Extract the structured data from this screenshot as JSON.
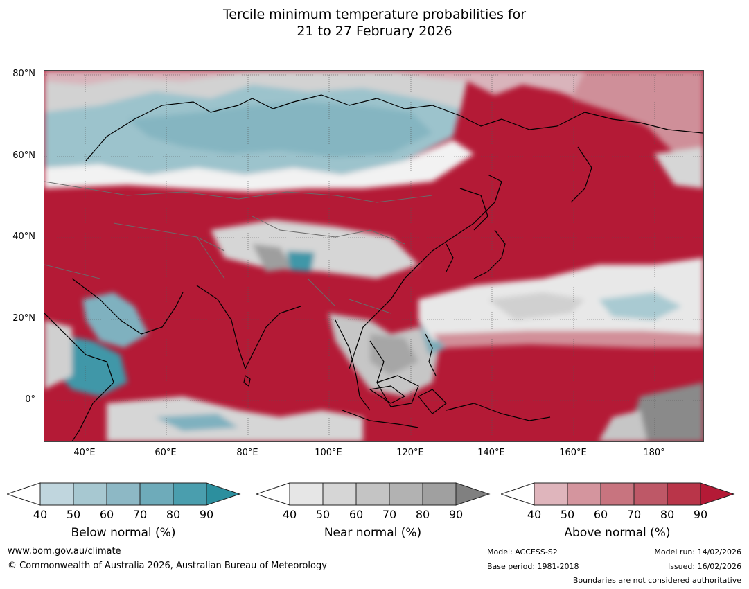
{
  "title_line1": "Tercile minimum temperature probabilities for",
  "title_line2": "21 to 27 February 2026",
  "lat_ticks": [
    "80°N",
    "60°N",
    "40°N",
    "20°N",
    "0°"
  ],
  "lon_ticks": [
    "40°E",
    "60°E",
    "80°E",
    "100°E",
    "120°E",
    "140°E",
    "160°E",
    "180°"
  ],
  "legends": [
    {
      "title": "Below normal (%)",
      "ticks": [
        "40",
        "50",
        "60",
        "70",
        "80",
        "90"
      ],
      "colors": [
        "#c0d6de",
        "#a7c8d1",
        "#8db8c5",
        "#6eabba",
        "#4a9eae",
        "#2c8f9e"
      ]
    },
    {
      "title": "Near normal (%)",
      "ticks": [
        "40",
        "50",
        "60",
        "70",
        "80",
        "90"
      ],
      "colors": [
        "#e6e6e6",
        "#d6d6d6",
        "#c4c4c4",
        "#b2b2b2",
        "#a0a0a0",
        "#808080"
      ]
    },
    {
      "title": "Above normal (%)",
      "ticks": [
        "40",
        "50",
        "60",
        "70",
        "80",
        "90"
      ],
      "colors": [
        "#dfb5bc",
        "#d4959e",
        "#c8747f",
        "#be5867",
        "#b93549",
        "#b41a36"
      ]
    }
  ],
  "footer": {
    "website": "www.bom.gov.au/climate",
    "copyright": "© Commonwealth of Australia 2026, Australian Bureau of Meteorology",
    "model": "Model: ACCESS-S2",
    "base_period": "Base period: 1981-2018",
    "model_run": "Model run: 14/02/2026",
    "issued": "Issued: 16/02/2026",
    "disclaimer": "Boundaries are not considered authoritative"
  }
}
